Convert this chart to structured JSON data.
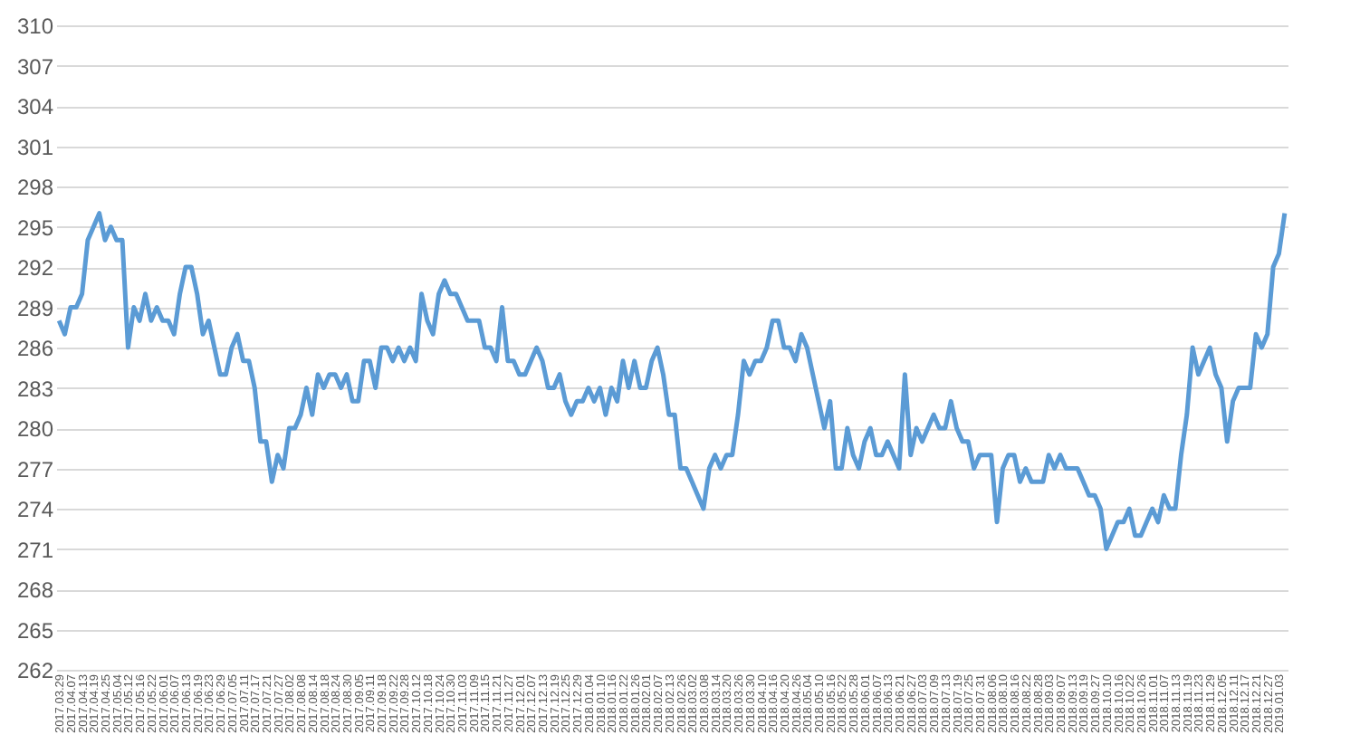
{
  "chart_data": {
    "type": "line",
    "categories": [
      "2017.03.29",
      null,
      "2017.04.07",
      null,
      "2017.04.13",
      null,
      "2017.04.19",
      null,
      "2017.04.25",
      null,
      "2017.05.04",
      null,
      "2017.05.12",
      null,
      "2017.05.16",
      null,
      "2017.05.22",
      null,
      "2017.06.01",
      null,
      "2017.06.07",
      null,
      "2017.06.13",
      null,
      "2017.06.19",
      null,
      "2017.06.23",
      null,
      "2017.06.29",
      null,
      "2017.07.05",
      null,
      "2017.07.11",
      null,
      "2017.07.17",
      null,
      "2017.07.21",
      null,
      "2017.07.27",
      null,
      "2017.08.02",
      null,
      "2017.08.08",
      null,
      "2017.08.14",
      null,
      "2017.08.18",
      null,
      "2017.08.24",
      null,
      "2017.08.30",
      null,
      "2017.09.05",
      null,
      "2017.09.11",
      null,
      "2017.09.18",
      null,
      "2017.09.22",
      null,
      "2017.09.28",
      null,
      "2017.10.12",
      null,
      "2017.10.18",
      null,
      "2017.10.24",
      null,
      "2017.10.30",
      null,
      "2017.11.03",
      null,
      "2017.11.09",
      null,
      "2017.11.15",
      null,
      "2017.11.21",
      null,
      "2017.11.27",
      null,
      "2017.12.01",
      null,
      "2017.12.07",
      null,
      "2017.12.13",
      null,
      "2017.12.19",
      null,
      "2017.12.25",
      null,
      "2017.12.29",
      null,
      "2018.01.04",
      null,
      "2018.01.10",
      null,
      "2018.01.16",
      null,
      "2018.01.22",
      null,
      "2018.01.26",
      null,
      "2018.02.01",
      null,
      "2018.02.07",
      null,
      "2018.02.13",
      null,
      "2018.02.26",
      null,
      "2018.03.02",
      null,
      "2018.03.08",
      null,
      "2018.03.14",
      null,
      "2018.03.20",
      null,
      "2018.03.26",
      null,
      "2018.03.30",
      null,
      "2018.04.10",
      null,
      "2018.04.16",
      null,
      "2018.04.20",
      null,
      "2018.04.26",
      null,
      "2018.05.04",
      null,
      "2018.05.10",
      null,
      "2018.05.16",
      null,
      "2018.05.22",
      null,
      "2018.05.28",
      null,
      "2018.06.01",
      null,
      "2018.06.07",
      null,
      "2018.06.13",
      null,
      "2018.06.21",
      null,
      "2018.06.27",
      null,
      "2018.07.03",
      null,
      "2018.07.09",
      null,
      "2018.07.13",
      null,
      "2018.07.19",
      null,
      "2018.07.25",
      null,
      "2018.07.31",
      null,
      "2018.08.06",
      null,
      "2018.08.10",
      null,
      "2018.08.16",
      null,
      "2018.08.22",
      null,
      "2018.08.28",
      null,
      "2018.09.03",
      null,
      "2018.09.07",
      null,
      "2018.09.13",
      null,
      "2018.09.19",
      null,
      "2018.09.27",
      null,
      "2018.10.10",
      null,
      "2018.10.16",
      null,
      "2018.10.22",
      null,
      "2018.10.26",
      null,
      "2018.11.01",
      null,
      "2018.11.07",
      null,
      "2018.11.13",
      null,
      "2018.11.19",
      null,
      "2018.11.23",
      null,
      "2018.11.29",
      null,
      "2018.12.05",
      null,
      "2018.12.11",
      null,
      "2018.12.17",
      null,
      "2018.12.21",
      null,
      "2018.12.27",
      null,
      "2019.01.03",
      null
    ],
    "series": [
      {
        "color": "#5b9bd5",
        "values": [
          288,
          287,
          289,
          289,
          290,
          294,
          295,
          296,
          294,
          295,
          294,
          294,
          286,
          289,
          288,
          290,
          288,
          289,
          288,
          288,
          287,
          290,
          292,
          292,
          290,
          287,
          288,
          286,
          284,
          284,
          286,
          287,
          285,
          285,
          283,
          279,
          279,
          276,
          278,
          277,
          280,
          280,
          281,
          283,
          281,
          284,
          283,
          284,
          284,
          283,
          284,
          282,
          282,
          285,
          285,
          283,
          286,
          286,
          285,
          286,
          285,
          286,
          285,
          290,
          288,
          287,
          290,
          291,
          290,
          290,
          289,
          288,
          288,
          288,
          286,
          286,
          285,
          289,
          285,
          285,
          284,
          284,
          285,
          286,
          285,
          283,
          283,
          284,
          282,
          281,
          282,
          282,
          283,
          282,
          283,
          281,
          283,
          282,
          285,
          283,
          285,
          283,
          283,
          285,
          286,
          284,
          281,
          281,
          277,
          277,
          276,
          275,
          274,
          277,
          278,
          277,
          278,
          278,
          281,
          285,
          284,
          285,
          285,
          286,
          288,
          288,
          286,
          286,
          285,
          287,
          286,
          284,
          282,
          280,
          282,
          277,
          277,
          280,
          278,
          277,
          279,
          280,
          278,
          278,
          279,
          278,
          277,
          284,
          278,
          280,
          279,
          280,
          281,
          280,
          280,
          282,
          280,
          279,
          279,
          277,
          278,
          278,
          278,
          273,
          277,
          278,
          278,
          276,
          277,
          276,
          276,
          276,
          278,
          277,
          278,
          277,
          277,
          277,
          276,
          275,
          275,
          274,
          271,
          272,
          273,
          273,
          274,
          272,
          272,
          273,
          274,
          273,
          275,
          274,
          274,
          278,
          281,
          286,
          284,
          285,
          286,
          284,
          283,
          279,
          282,
          283,
          283,
          283,
          287,
          286,
          287,
          292,
          293,
          296
        ]
      }
    ],
    "ylim": [
      262,
      310
    ],
    "yticks": [
      262,
      265,
      268,
      271,
      274,
      277,
      280,
      283,
      286,
      289,
      292,
      295,
      298,
      301,
      304,
      307,
      310
    ],
    "grid": "y",
    "legend": false,
    "marker": "none",
    "line_style": "solid"
  }
}
